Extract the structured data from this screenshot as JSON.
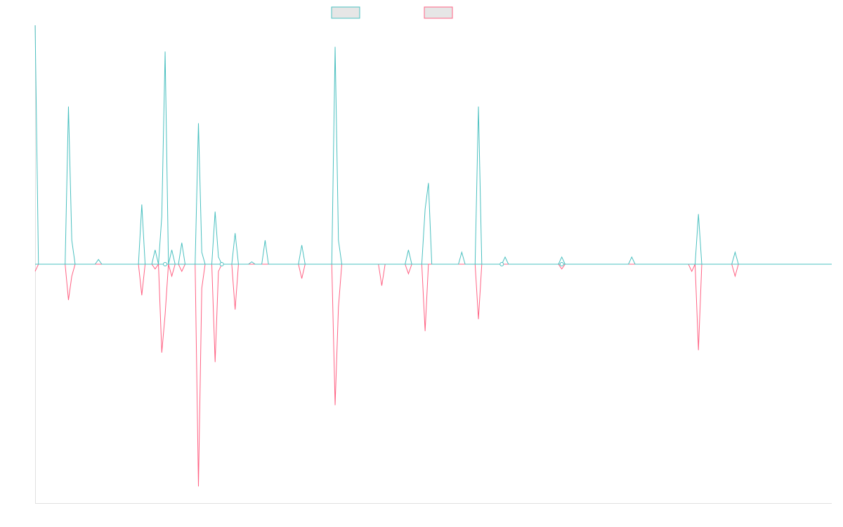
{
  "chart_data": {
    "type": "line",
    "title": "",
    "xlabel": "",
    "ylabel": "",
    "ylim": [
      -100,
      100
    ],
    "grid": false,
    "legend_position": "top-center",
    "series": [
      {
        "color": "#4bc0c0",
        "values": [
          100,
          0,
          0,
          0,
          0,
          0,
          0,
          0,
          0,
          0,
          66,
          10,
          0,
          0,
          0,
          0,
          0,
          0,
          0,
          2,
          0,
          0,
          0,
          0,
          0,
          0,
          0,
          0,
          0,
          0,
          0,
          0,
          25,
          0,
          0,
          0,
          6,
          0,
          20,
          89,
          0,
          6,
          0,
          0,
          9,
          0,
          0,
          0,
          0,
          59,
          5,
          0,
          0,
          0,
          22,
          3,
          0,
          0,
          0,
          0,
          13,
          0,
          0,
          0,
          0,
          1,
          0,
          0,
          0,
          10,
          0,
          0,
          0,
          0,
          0,
          0,
          0,
          0,
          0,
          0,
          8,
          0,
          0,
          0,
          0,
          0,
          0,
          0,
          0,
          0,
          91,
          10,
          0,
          0,
          0,
          0,
          0,
          0,
          0,
          0,
          0,
          0,
          0,
          0,
          0,
          0,
          0,
          0,
          0,
          0,
          0,
          0,
          6,
          0,
          0,
          0,
          0,
          23,
          34,
          0,
          0,
          0,
          0,
          0,
          0,
          0,
          0,
          0,
          5,
          0,
          0,
          0,
          0,
          66,
          0,
          0,
          0,
          0,
          0,
          0,
          0,
          3,
          0,
          0,
          0,
          0,
          0,
          0,
          0,
          0,
          0,
          0,
          0,
          0,
          0,
          0,
          0,
          0,
          3,
          0,
          0,
          0,
          0,
          0,
          0,
          0,
          0,
          0,
          0,
          0,
          0,
          0,
          0,
          0,
          0,
          0,
          0,
          0,
          0,
          3,
          0,
          0,
          0,
          0,
          0,
          0,
          0,
          0,
          0,
          0,
          0,
          0,
          0,
          0,
          0,
          0,
          0,
          0,
          0,
          21,
          0,
          0,
          0,
          0,
          0,
          0,
          0,
          0,
          0,
          0,
          5,
          0,
          0,
          0,
          0,
          0,
          0,
          0,
          0,
          0,
          0,
          0,
          0,
          0,
          0,
          0,
          0,
          0,
          0,
          0,
          0,
          0,
          0,
          0,
          0,
          0,
          0,
          0,
          0,
          0
        ]
      },
      {
        "color": "#ff6384",
        "values": [
          -3,
          0,
          0,
          0,
          0,
          0,
          0,
          0,
          0,
          0,
          -15,
          -5,
          0,
          0,
          0,
          0,
          0,
          0,
          0,
          0,
          0,
          0,
          0,
          0,
          0,
          0,
          0,
          0,
          0,
          0,
          0,
          0,
          -13,
          0,
          0,
          0,
          -2,
          0,
          -37,
          -21,
          0,
          -5,
          0,
          0,
          -3,
          0,
          0,
          0,
          0,
          -93,
          -10,
          0,
          0,
          0,
          -41,
          -3,
          0,
          0,
          0,
          0,
          -19,
          0,
          0,
          0,
          0,
          0,
          0,
          0,
          0,
          0,
          0,
          0,
          0,
          0,
          0,
          0,
          0,
          0,
          0,
          0,
          -6,
          0,
          0,
          0,
          0,
          0,
          0,
          0,
          0,
          0,
          -59,
          -18,
          0,
          0,
          0,
          0,
          0,
          0,
          0,
          0,
          0,
          0,
          0,
          0,
          -9,
          0,
          0,
          0,
          0,
          0,
          0,
          0,
          -4,
          0,
          0,
          0,
          0,
          -28,
          0,
          0,
          0,
          0,
          0,
          0,
          0,
          0,
          0,
          0,
          0,
          0,
          0,
          0,
          0,
          -23,
          0,
          0,
          0,
          0,
          0,
          0,
          0,
          0,
          0,
          0,
          0,
          0,
          0,
          0,
          0,
          0,
          0,
          0,
          0,
          0,
          0,
          0,
          0,
          0,
          -2,
          0,
          0,
          0,
          0,
          0,
          0,
          0,
          0,
          0,
          0,
          0,
          0,
          0,
          0,
          0,
          0,
          0,
          0,
          0,
          0,
          0,
          0,
          0,
          0,
          0,
          0,
          0,
          0,
          0,
          0,
          0,
          0,
          0,
          0,
          0,
          0,
          0,
          0,
          -3,
          0,
          -36,
          0,
          0,
          0,
          0,
          0,
          0,
          0,
          0,
          0,
          0,
          -5,
          0,
          0,
          0,
          0,
          0,
          0,
          0,
          0,
          0,
          0,
          0,
          0,
          0,
          0,
          0,
          0,
          0,
          0,
          0,
          0,
          0,
          0,
          0,
          0,
          0,
          0,
          0,
          0,
          0
        ]
      }
    ]
  }
}
